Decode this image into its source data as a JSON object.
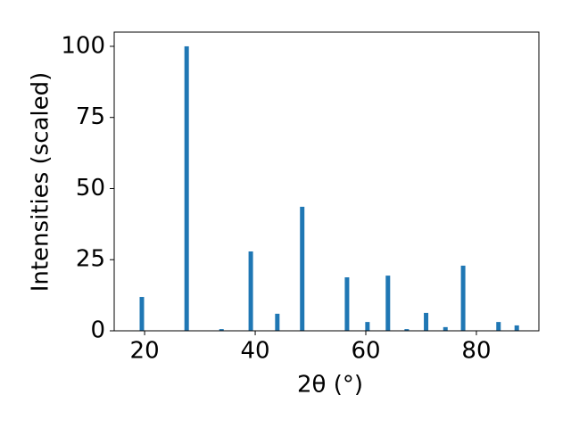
{
  "chart_data": {
    "type": "bar",
    "x": [
      19.5,
      27.6,
      33.9,
      39.2,
      44.0,
      48.5,
      56.6,
      60.3,
      64.0,
      67.4,
      70.9,
      74.4,
      77.6,
      84.0,
      87.3
    ],
    "values": [
      11.9,
      100,
      0.6,
      27.9,
      6.0,
      43.6,
      18.8,
      3.1,
      19.4,
      0.6,
      6.3,
      1.3,
      22.9,
      3.1,
      1.9
    ],
    "color": "#1f77b4",
    "xlabel": "2θ (°)",
    "ylabel": "Intensities (scaled)",
    "xlim": [
      14.5,
      91.3
    ],
    "xticks": [
      20,
      40,
      60,
      80
    ],
    "ylim": [
      0,
      105
    ],
    "yticks": [
      0,
      25,
      50,
      75,
      100
    ]
  }
}
